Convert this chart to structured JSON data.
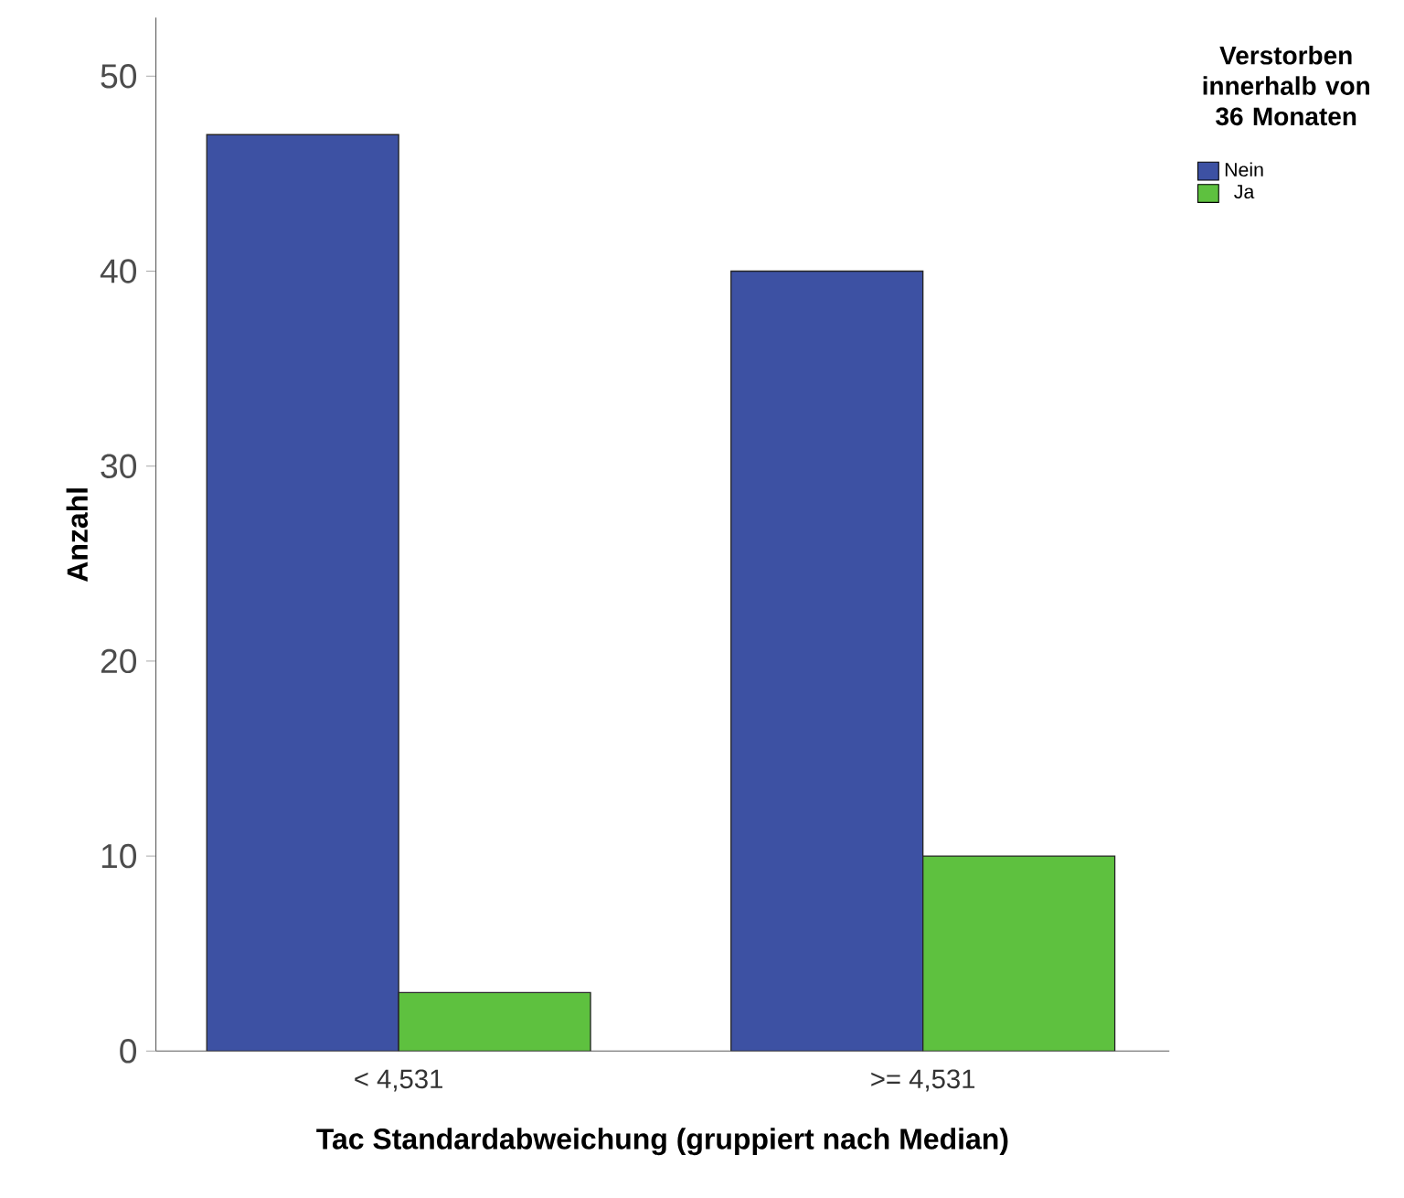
{
  "chart_data": {
    "type": "bar",
    "xlabel": "Tac Standardabweichung (gruppiert nach Median)",
    "ylabel": "Anzahl",
    "categories": [
      "< 4,531",
      ">= 4,531"
    ],
    "series": [
      {
        "name": "Nein",
        "color": "#3d51a3",
        "values": [
          47,
          40
        ]
      },
      {
        "name": "Ja",
        "color": "#5ec13f",
        "values": [
          3,
          10
        ]
      }
    ],
    "ylim": [
      0,
      53
    ],
    "yticks": [
      0,
      10,
      20,
      30,
      40,
      50
    ],
    "grid": false,
    "legend": "top right",
    "legend_title": "Verstorben innerhalb von 36 Monaten"
  }
}
